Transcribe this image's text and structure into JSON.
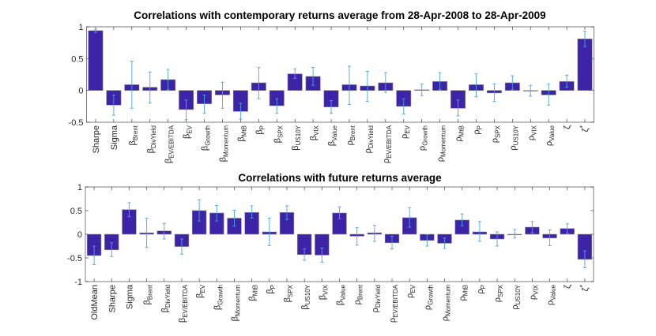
{
  "colors": {
    "bar": "#3c23a8",
    "bar_edge": "#8a8a8a",
    "errorbar": "#4aa3df",
    "axis": "#262626"
  },
  "chart_data": [
    {
      "type": "bar",
      "title": "Correlations with contemporary returns average from 28-Apr-2008 to 28-Apr-2009",
      "ylim": [
        -0.5,
        1
      ],
      "yticks": [
        -0.5,
        0,
        0.5,
        1
      ],
      "ytick_labels": [
        "-0.5",
        "0",
        "0.5",
        "1"
      ],
      "grid": false,
      "categories": [
        {
          "base": "Sharpe"
        },
        {
          "base": "Sigma"
        },
        {
          "base": "β",
          "sub": "Brent"
        },
        {
          "base": "β",
          "sub": "DivYield"
        },
        {
          "base": "β",
          "sub": "EV/EBITDA"
        },
        {
          "base": "β",
          "sub": "EV"
        },
        {
          "base": "β",
          "sub": "Growth"
        },
        {
          "base": "β",
          "sub": "Momentum"
        },
        {
          "base": "β",
          "sub": "MtB"
        },
        {
          "base": "β",
          "sub": "P"
        },
        {
          "base": "β",
          "sub": "SPX"
        },
        {
          "base": "β",
          "sub": "US10Y"
        },
        {
          "base": "β",
          "sub": "VIX"
        },
        {
          "base": "β",
          "sub": "Value"
        },
        {
          "base": "ρ",
          "sub": "Brent"
        },
        {
          "base": "ρ",
          "sub": "DivYield"
        },
        {
          "base": "ρ",
          "sub": "EV/EBITDA"
        },
        {
          "base": "ρ",
          "sub": "EV"
        },
        {
          "base": "ρ",
          "sub": "Growth"
        },
        {
          "base": "ρ",
          "sub": "Momentum"
        },
        {
          "base": "ρ",
          "sub": "MtB"
        },
        {
          "base": "ρ",
          "sub": "P"
        },
        {
          "base": "ρ",
          "sub": "SPX"
        },
        {
          "base": "ρ",
          "sub": "US10Y"
        },
        {
          "base": "ρ",
          "sub": "VIX"
        },
        {
          "base": "ρ",
          "sub": "Value"
        },
        {
          "base": "ζ"
        },
        {
          "base": "ζ",
          "sup": "*"
        }
      ],
      "values": [
        0.94,
        -0.23,
        0.09,
        0.05,
        0.17,
        -0.3,
        -0.21,
        -0.07,
        -0.33,
        0.12,
        -0.24,
        0.26,
        0.22,
        -0.26,
        0.09,
        0.07,
        0.12,
        -0.25,
        0.01,
        0.14,
        -0.28,
        0.09,
        -0.04,
        0.12,
        0.0,
        -0.07,
        0.14,
        0.81
      ],
      "error_low": [
        0.91,
        -0.39,
        -0.28,
        -0.2,
        0.01,
        -0.46,
        -0.36,
        -0.28,
        -0.45,
        -0.13,
        -0.36,
        0.19,
        0.08,
        -0.36,
        -0.22,
        -0.17,
        -0.03,
        -0.37,
        -0.08,
        0.01,
        -0.4,
        -0.1,
        -0.17,
        0.01,
        -0.09,
        -0.23,
        0.05,
        0.69
      ],
      "error_high": [
        0.96,
        -0.07,
        0.46,
        0.29,
        0.33,
        -0.15,
        -0.07,
        0.13,
        -0.2,
        0.36,
        -0.13,
        0.34,
        0.36,
        -0.16,
        0.38,
        0.3,
        0.28,
        -0.13,
        0.1,
        0.28,
        -0.15,
        0.26,
        0.1,
        0.23,
        0.08,
        0.1,
        0.24,
        0.93
      ]
    },
    {
      "type": "bar",
      "title": "Correlations with future returns average",
      "ylim": [
        -1,
        1
      ],
      "yticks": [
        -1,
        -0.5,
        0,
        0.5,
        1
      ],
      "ytick_labels": [
        "-1",
        "-0.5",
        "0",
        "0.5",
        "1"
      ],
      "grid": false,
      "categories": [
        {
          "base": "OldMean"
        },
        {
          "base": "Sharpe"
        },
        {
          "base": "Sigma"
        },
        {
          "base": "β",
          "sub": "Brent"
        },
        {
          "base": "β",
          "sub": "DivYield"
        },
        {
          "base": "β",
          "sub": "EV/EBITDA"
        },
        {
          "base": "β",
          "sub": "EV"
        },
        {
          "base": "β",
          "sub": "Growth"
        },
        {
          "base": "β",
          "sub": "Momentum"
        },
        {
          "base": "β",
          "sub": "MtB"
        },
        {
          "base": "β",
          "sub": "P"
        },
        {
          "base": "β",
          "sub": "SPX"
        },
        {
          "base": "β",
          "sub": "US10Y"
        },
        {
          "base": "β",
          "sub": "VIX"
        },
        {
          "base": "β",
          "sub": "Value"
        },
        {
          "base": "ρ",
          "sub": "Brent"
        },
        {
          "base": "ρ",
          "sub": "DivYield"
        },
        {
          "base": "ρ",
          "sub": "EV/EBITDA"
        },
        {
          "base": "ρ",
          "sub": "EV"
        },
        {
          "base": "ρ",
          "sub": "Growth"
        },
        {
          "base": "ρ",
          "sub": "Momentum"
        },
        {
          "base": "ρ",
          "sub": "MtB"
        },
        {
          "base": "ρ",
          "sub": "P"
        },
        {
          "base": "ρ",
          "sub": "SPX"
        },
        {
          "base": "ρ",
          "sub": "US10Y"
        },
        {
          "base": "ρ",
          "sub": "VIX"
        },
        {
          "base": "ρ",
          "sub": "Value"
        },
        {
          "base": "ζ"
        },
        {
          "base": "ζ",
          "sup": "*"
        }
      ],
      "values": [
        -0.45,
        -0.33,
        0.52,
        0.03,
        0.07,
        -0.26,
        0.5,
        0.45,
        0.34,
        0.46,
        0.05,
        0.46,
        -0.43,
        -0.44,
        0.45,
        -0.04,
        0.03,
        -0.18,
        0.35,
        -0.13,
        -0.19,
        0.3,
        0.05,
        -0.1,
        0.0,
        0.15,
        -0.08,
        0.12,
        -0.53
      ],
      "error_low": [
        -0.64,
        -0.47,
        0.37,
        -0.28,
        -0.1,
        -0.42,
        0.28,
        0.28,
        0.17,
        0.34,
        -0.24,
        0.31,
        -0.55,
        -0.59,
        0.33,
        -0.23,
        -0.15,
        -0.31,
        0.15,
        -0.25,
        -0.3,
        0.18,
        -0.15,
        -0.25,
        -0.08,
        0.03,
        -0.24,
        0.02,
        -0.71
      ],
      "error_high": [
        -0.25,
        -0.18,
        0.67,
        0.34,
        0.23,
        -0.1,
        0.73,
        0.61,
        0.51,
        0.6,
        0.34,
        0.6,
        -0.31,
        -0.29,
        0.58,
        0.14,
        0.19,
        -0.04,
        0.56,
        -0.01,
        -0.08,
        0.43,
        0.27,
        0.05,
        0.1,
        0.27,
        0.09,
        0.22,
        -0.35
      ]
    }
  ]
}
